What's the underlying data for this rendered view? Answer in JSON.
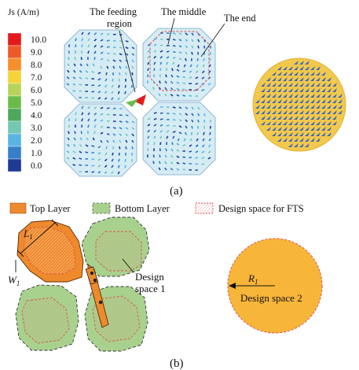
{
  "panel_a": {
    "colorbar": {
      "title": "Js (A/m)",
      "ticks": [
        "10.0",
        "9.0",
        "8.0",
        "7.0",
        "6.0",
        "5.0",
        "4.0",
        "3.0",
        "2.0",
        "1.0",
        "0.0"
      ],
      "colors": [
        "#e31a1c",
        "#ef5a28",
        "#f68e2b",
        "#f5d33a",
        "#b7d35a",
        "#6cbb4a",
        "#4ea85e",
        "#74c7b2",
        "#58b5e3",
        "#3580c8",
        "#1f3a93"
      ]
    },
    "annotations": {
      "feeding": "The feeding",
      "feeding2": "region",
      "middle": "The middle",
      "end": "The end"
    },
    "label": "(a)"
  },
  "panel_b": {
    "legend": {
      "top_layer": "Top Layer",
      "bottom_layer": "Bottom Layer",
      "design_space": "Design space for FTS"
    },
    "dims": {
      "L": "L",
      "L_sub": "1",
      "W": "W",
      "W_sub": "1",
      "R": "R",
      "R_sub": "1"
    },
    "design1": "Design",
    "design1b": "space 1",
    "design2": "Design space 2",
    "label": "(b)",
    "colors": {
      "top": "#ef8a2c",
      "bottom": "#a9d18e",
      "space": "#f7b53a",
      "dash": "#d9534f"
    }
  }
}
